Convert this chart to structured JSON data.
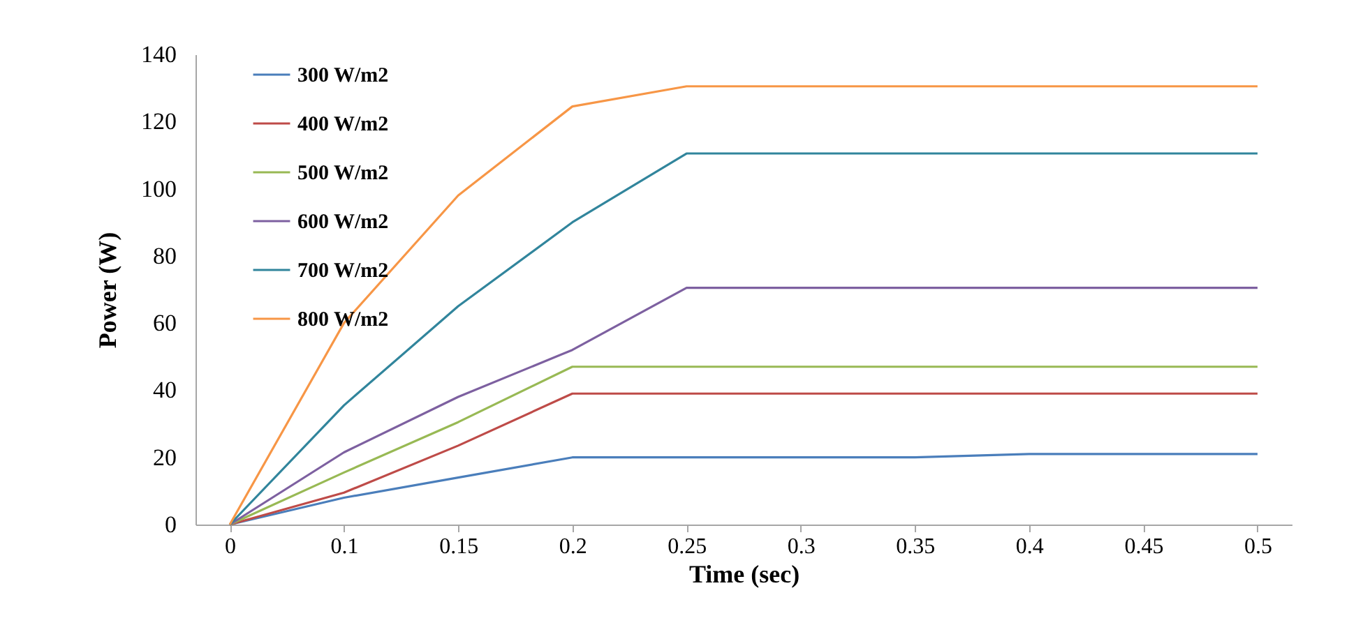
{
  "chart_data": {
    "type": "line",
    "xlabel": "Time (sec)",
    "ylabel": "Power (W)",
    "categories": [
      "0",
      "0.1",
      "0.15",
      "0.2",
      "0.25",
      "0.3",
      "0.35",
      "0.4",
      "0.45",
      "0.5"
    ],
    "series": [
      {
        "name": "300 W/m2",
        "color": "#4a7ebb",
        "values": [
          0,
          8,
          14,
          20,
          20,
          20,
          20,
          21,
          21,
          21
        ]
      },
      {
        "name": "400 W/m2",
        "color": "#be4b48",
        "values": [
          0,
          9.5,
          23.5,
          39,
          39,
          39,
          39,
          39,
          39,
          39
        ]
      },
      {
        "name": "500 W/m2",
        "color": "#98b954",
        "values": [
          0,
          15.5,
          30.5,
          47,
          47,
          47,
          47,
          47,
          47,
          47
        ]
      },
      {
        "name": "600 W/m2",
        "color": "#7d60a0",
        "values": [
          0,
          21.5,
          38,
          52,
          70.5,
          70.5,
          70.5,
          70.5,
          70.5,
          70.5
        ]
      },
      {
        "name": "700 W/m2",
        "color": "#31859c",
        "values": [
          0,
          35.5,
          65,
          90,
          110.5,
          110.5,
          110.5,
          110.5,
          110.5,
          110.5
        ]
      },
      {
        "name": "800 W/m2",
        "color": "#f79646",
        "values": [
          0,
          60,
          98,
          124.5,
          130.5,
          130.5,
          130.5,
          130.5,
          130.5,
          130.5
        ]
      }
    ],
    "ylim": [
      0,
      140
    ],
    "yticks": [
      0,
      20,
      40,
      60,
      80,
      100,
      120,
      140
    ],
    "grid": false,
    "legend": "top left",
    "marker": "none",
    "line_style": "solid"
  }
}
